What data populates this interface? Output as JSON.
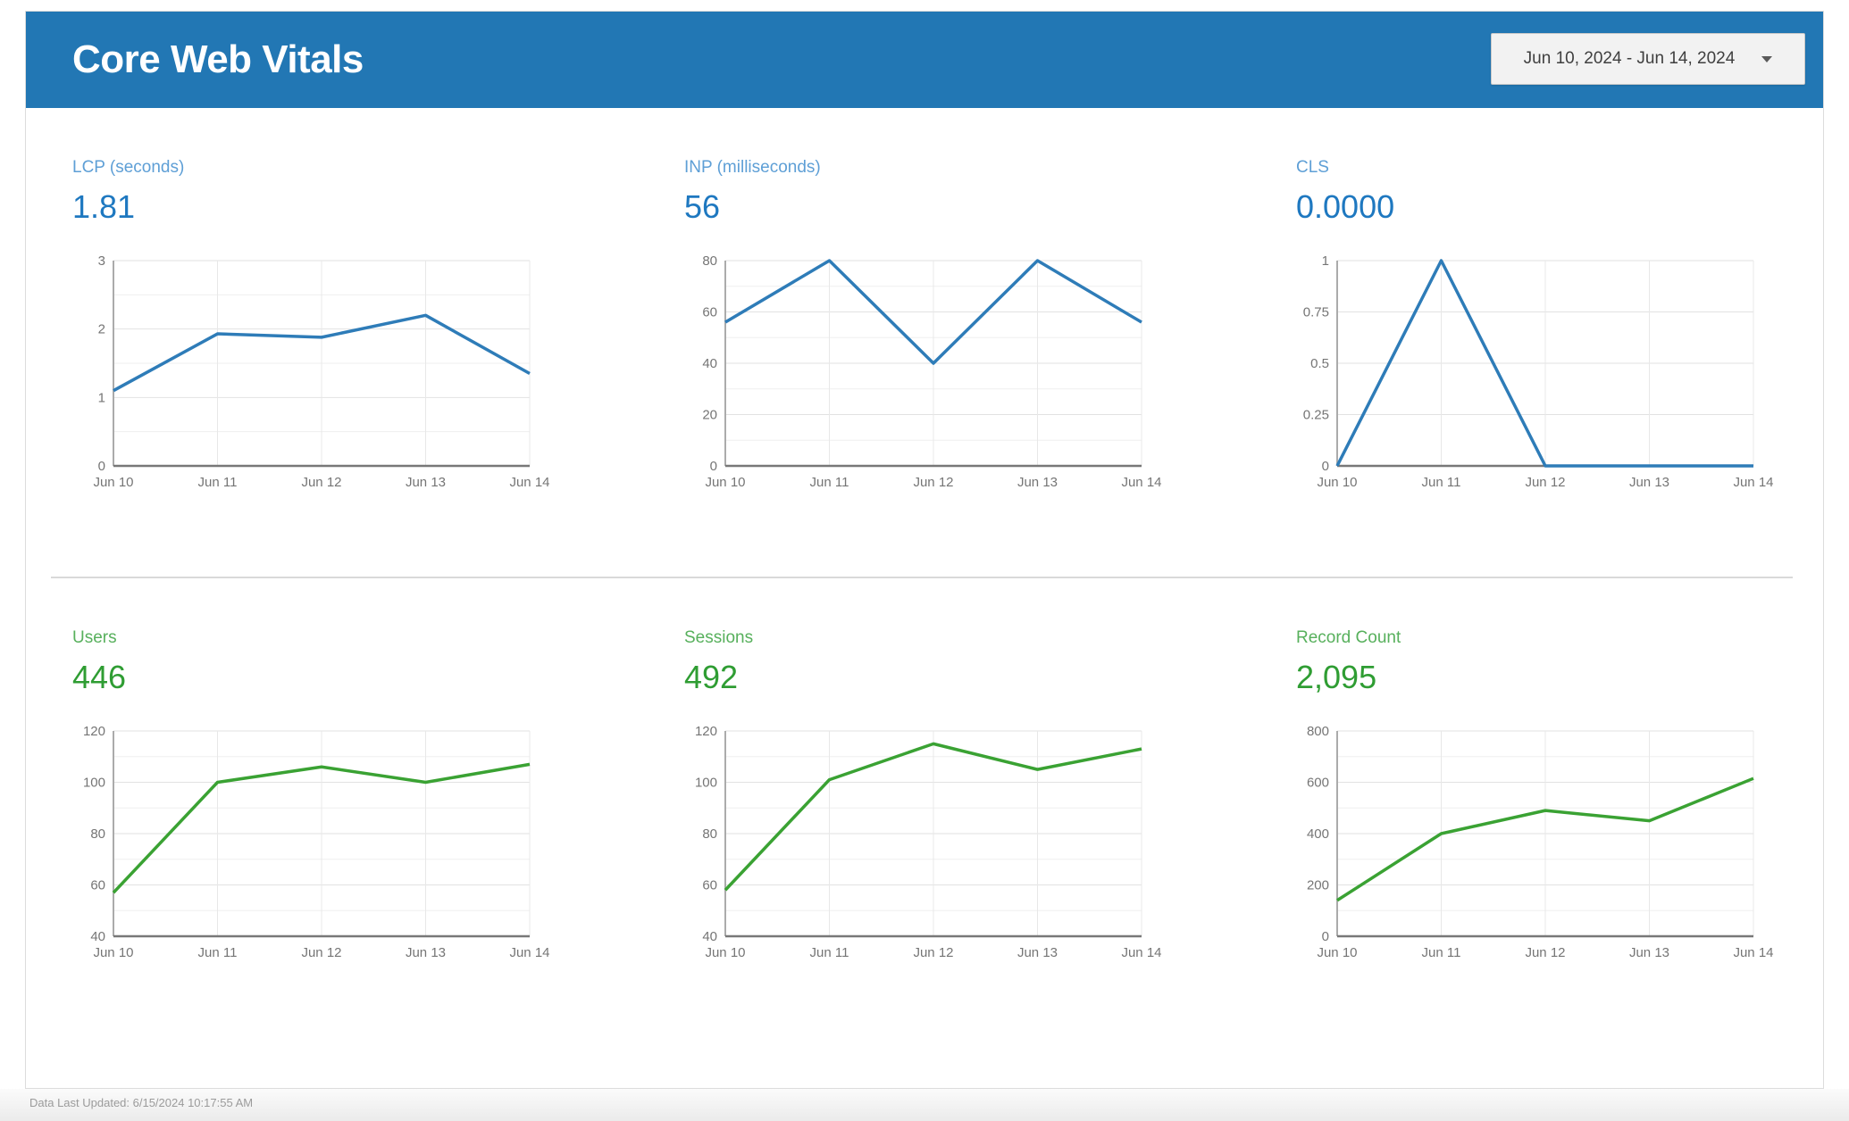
{
  "header": {
    "title": "Core Web Vitals",
    "date_range_label": "Jun 10, 2024 - Jun 14, 2024"
  },
  "footer": {
    "last_updated": "Data Last Updated: 6/15/2024 10:17:55 AM"
  },
  "colors": {
    "header_bg": "#2277B4",
    "blue_label": "#5E9FD6",
    "blue_value": "#1E78C0",
    "blue_line": "#2E7CB8",
    "green_label": "#57B05C",
    "green_value": "#2F9D33",
    "green_line": "#3AA233",
    "grid_major": "#e2e2e2",
    "grid_minor": "#efefef",
    "grid_vertical": "#e8e8e8",
    "axis_left": "#ababab",
    "axis_bottom": "#787878",
    "tick_text": "#757575"
  },
  "chart_data": [
    {
      "id": "lcp",
      "type": "line",
      "title": "LCP (seconds)",
      "scorecard_value": "1.81",
      "accent": "blue",
      "legend": "none",
      "grid": true,
      "categories": [
        "Jun 10",
        "Jun 11",
        "Jun 12",
        "Jun 13",
        "Jun 14"
      ],
      "values": [
        1.1,
        1.93,
        1.88,
        2.2,
        1.35
      ],
      "ylim": [
        0,
        3
      ],
      "yticks": [
        0,
        1,
        2,
        3
      ],
      "minor_step": 0.5
    },
    {
      "id": "inp",
      "type": "line",
      "title": "INP (milliseconds)",
      "scorecard_value": "56",
      "accent": "blue",
      "legend": "none",
      "grid": true,
      "categories": [
        "Jun 10",
        "Jun 11",
        "Jun 12",
        "Jun 13",
        "Jun 14"
      ],
      "values": [
        56,
        80,
        40,
        80,
        56
      ],
      "ylim": [
        0,
        80
      ],
      "yticks": [
        0,
        20,
        40,
        60,
        80
      ],
      "minor_step": 10
    },
    {
      "id": "cls",
      "type": "line",
      "title": "CLS",
      "scorecard_value": "0.0000",
      "accent": "blue",
      "legend": "none",
      "grid": true,
      "categories": [
        "Jun 10",
        "Jun 11",
        "Jun 12",
        "Jun 13",
        "Jun 14"
      ],
      "values": [
        0,
        1,
        0,
        0,
        0
      ],
      "ylim": [
        0,
        1
      ],
      "yticks": [
        0,
        0.25,
        0.5,
        0.75,
        1
      ],
      "minor_step": null
    },
    {
      "id": "users",
      "type": "line",
      "title": "Users",
      "scorecard_value": "446",
      "accent": "green",
      "legend": "none",
      "grid": true,
      "categories": [
        "Jun 10",
        "Jun 11",
        "Jun 12",
        "Jun 13",
        "Jun 14"
      ],
      "values": [
        57,
        100,
        106,
        100,
        107
      ],
      "ylim": [
        40,
        120
      ],
      "yticks": [
        40,
        60,
        80,
        100,
        120
      ],
      "minor_step": 10
    },
    {
      "id": "sessions",
      "type": "line",
      "title": "Sessions",
      "scorecard_value": "492",
      "accent": "green",
      "legend": "none",
      "grid": true,
      "categories": [
        "Jun 10",
        "Jun 11",
        "Jun 12",
        "Jun 13",
        "Jun 14"
      ],
      "values": [
        58,
        101,
        115,
        105,
        113
      ],
      "ylim": [
        40,
        120
      ],
      "yticks": [
        40,
        60,
        80,
        100,
        120
      ],
      "minor_step": 10
    },
    {
      "id": "record_count",
      "type": "line",
      "title": "Record Count",
      "scorecard_value": "2,095",
      "accent": "green",
      "legend": "none",
      "grid": true,
      "categories": [
        "Jun 10",
        "Jun 11",
        "Jun 12",
        "Jun 13",
        "Jun 14"
      ],
      "values": [
        140,
        400,
        490,
        450,
        615
      ],
      "ylim": [
        0,
        800
      ],
      "yticks": [
        0,
        200,
        400,
        600,
        800
      ],
      "minor_step": 100
    }
  ]
}
